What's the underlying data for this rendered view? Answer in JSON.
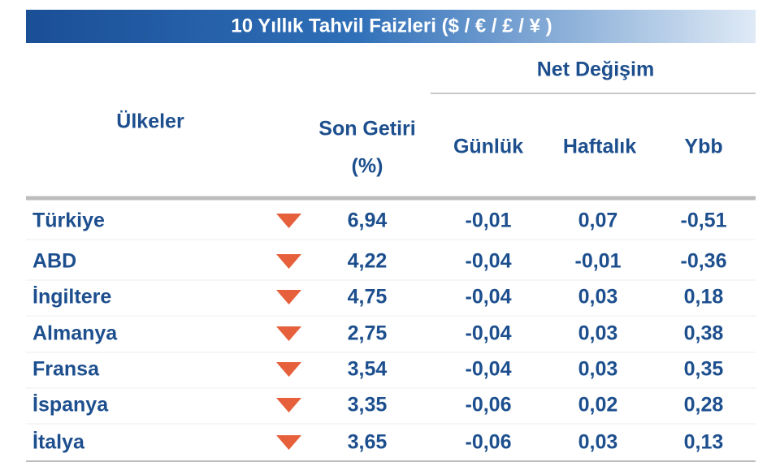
{
  "header": {
    "title": "10 Yıllık Tahvil Faizleri ($ / € / £ / ¥ )"
  },
  "table": {
    "columns": {
      "country": "Ülkeler",
      "last_yield": [
        "Son Getiri",
        "(%)"
      ],
      "net_change": "Net Değişim",
      "daily": "Günlük",
      "weekly": "Haftalık",
      "ytd": "Ybb"
    },
    "rows": [
      [
        "Türkiye",
        "6,94",
        "-0,01",
        "0,07",
        "-0,51"
      ],
      [
        "ABD",
        "4,22",
        "-0,04",
        "-0,01",
        "-0,36"
      ],
      [
        "İngiltere",
        "4,75",
        "-0,04",
        "0,03",
        "0,18"
      ],
      [
        "Almanya",
        "2,75",
        "-0,04",
        "0,03",
        "0,38"
      ],
      [
        "Fransa",
        "3,54",
        "-0,04",
        "0,03",
        "0,35"
      ],
      [
        "İspanya",
        "3,35",
        "-0,06",
        "0,02",
        "0,28"
      ],
      [
        "İtalya",
        "3,65",
        "-0,06",
        "0,03",
        "0,13"
      ]
    ]
  }
}
